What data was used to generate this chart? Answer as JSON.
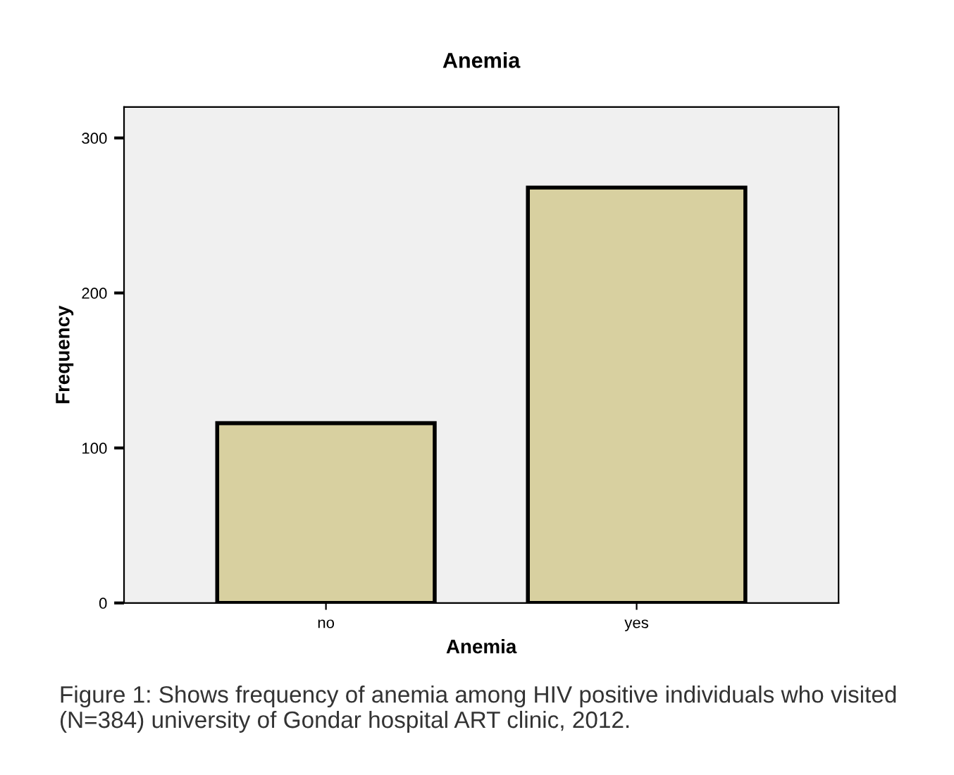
{
  "chart_data": {
    "type": "bar",
    "title": "Anemia",
    "xlabel": "Anemia",
    "ylabel": "Frequency",
    "categories": [
      "no",
      "yes"
    ],
    "values": [
      116,
      268
    ],
    "color": "#d8d0a0",
    "ylim": [
      0,
      320
    ],
    "yticks": [
      0,
      100,
      200,
      300
    ],
    "grid": false,
    "annotations": [
      "Figure 1: Shows frequency of anemia among HIV positive individuals who visited (N=384) university of Gondar hospital ART clinic, 2012."
    ]
  }
}
